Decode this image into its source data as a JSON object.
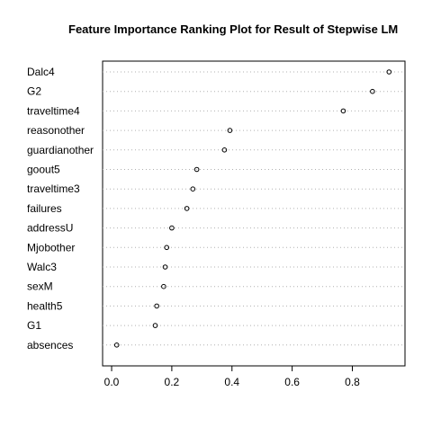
{
  "chart_data": {
    "type": "scatter",
    "title": "Feature Importance Ranking Plot for Result of Stepwise LM",
    "xlabel": "",
    "ylabel": "",
    "xlim": [
      -0.03,
      0.975
    ],
    "xticks": [
      "0.0",
      "0.2",
      "0.4",
      "0.6",
      "0.8"
    ],
    "xtick_values": [
      0.0,
      0.2,
      0.4,
      0.6,
      0.8
    ],
    "grid": "dotted horizontal guide lines per category",
    "categories": [
      "Dalc4",
      "G2",
      "traveltime4",
      "reasonother",
      "guardianother",
      "goout5",
      "traveltime3",
      "failures",
      "addressU",
      "Mjobother",
      "Walc3",
      "sexM",
      "health5",
      "G1",
      "absences"
    ],
    "values": [
      0.922,
      0.867,
      0.77,
      0.393,
      0.375,
      0.283,
      0.27,
      0.25,
      0.2,
      0.183,
      0.178,
      0.173,
      0.15,
      0.145,
      0.017
    ]
  }
}
